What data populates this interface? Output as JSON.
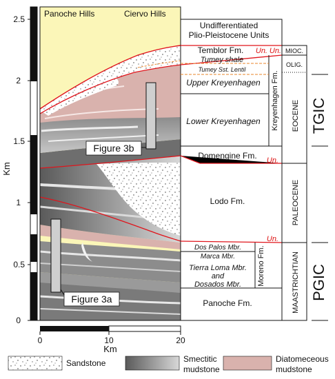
{
  "y_axis": {
    "label": "Km",
    "ticks": [
      "0",
      "0.5",
      "1",
      "1.5",
      "2",
      "2.5"
    ]
  },
  "x_axis": {
    "label": "Km",
    "ticks": [
      "0",
      "10",
      "20"
    ]
  },
  "locations": {
    "left": "Panoche Hills",
    "right": "Ciervo Hills"
  },
  "figure_labels": {
    "fig3b": "Figure 3b",
    "fig3a": "Figure 3a"
  },
  "units": {
    "plio_pleistocene": "Undifferentiated\nPlio-Pleistocene Units",
    "temblor": "Temblor Fm.",
    "tumey_shale": "Tumey shale",
    "tumey_sst": "Tumey Sst. Lentil",
    "upper_kreyenhagen": "Upper Kreyenhagen",
    "lower_kreyenhagen": "Lower Kreyenhagen",
    "domengine": "Domengine Fm.",
    "lodo": "Lodo Fm.",
    "dos_palos": "Dos Palos Mbr.",
    "marca": "Marca Mbr.",
    "tierra_loma": "Tierra Loma Mbr.",
    "and": "and",
    "dosados": "Dosados Mbr.",
    "panoche": "Panoche Fm."
  },
  "unconformity": "Un.",
  "formations": {
    "kreyenhagen": "Kreyenhagen Fm.",
    "moreno": "Moreno Fm."
  },
  "epochs": {
    "miocene": "MIOC.",
    "oligocene": "OLIG.",
    "eocene": "EOCENE",
    "paleocene": "PALEOCENE",
    "maastrichtian": "MAASTRICHTIAN"
  },
  "tectonic_units": {
    "tgic": "TGIC",
    "pgic": "PGIC"
  },
  "legend": {
    "sandstone": "Sandstone",
    "smectitic": "Smectitic\nmudstone",
    "diatomaceous": "Diatomeceous\nmudstone"
  },
  "colors": {
    "sky": "#fbf6b8",
    "diatomaceous": "#d9b2ad",
    "mudstone_dark": "#6e6e6e",
    "mudstone_light": "#b8b8b8",
    "unconformity": "#e0141b",
    "tumey_dashed": "#e8862a"
  }
}
